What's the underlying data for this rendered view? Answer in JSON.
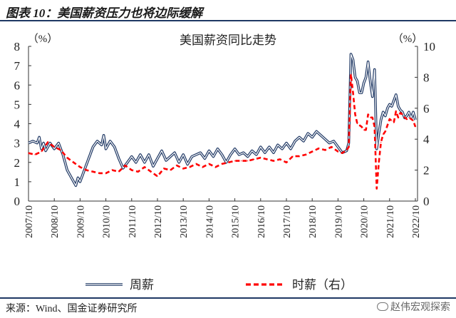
{
  "figure": {
    "title": "图表 10：美国薪资压力也将边际缓解",
    "source": "来源：Wind、国金证券研究所",
    "watermark": "赵伟宏观探索"
  },
  "chart_data": {
    "type": "line",
    "title": "美国薪资同比走势",
    "x_tick_labels": [
      "2007/10",
      "2008/10",
      "2009/10",
      "2010/10",
      "2011/10",
      "2012/10",
      "2013/10",
      "2014/10",
      "2015/10",
      "2016/10",
      "2017/10",
      "2018/10",
      "2019/10",
      "2020/10",
      "2021/10",
      "2022/10"
    ],
    "x_range": [
      "2007-10",
      "2022-11"
    ],
    "left_axis": {
      "unit_label": "（%）",
      "ylim": [
        0,
        8
      ],
      "ticks": [
        0,
        1,
        2,
        3,
        4,
        5,
        6,
        7,
        8
      ]
    },
    "right_axis": {
      "unit_label": "（%）",
      "ylim": [
        0,
        10
      ],
      "ticks": [
        0,
        2,
        4,
        6,
        8,
        10
      ]
    },
    "legend_position": "bottom",
    "grid": false,
    "series": [
      {
        "name": "周薪",
        "axis": "left",
        "color": "#1f3864",
        "style": "double-line",
        "points": [
          [
            "2007-10",
            3.0
          ],
          [
            "2007-12",
            3.1
          ],
          [
            "2008-02",
            3.0
          ],
          [
            "2008-03",
            3.3
          ],
          [
            "2008-04",
            2.7
          ],
          [
            "2008-05",
            3.0
          ],
          [
            "2008-06",
            2.6
          ],
          [
            "2008-08",
            3.0
          ],
          [
            "2008-10",
            2.7
          ],
          [
            "2008-12",
            3.0
          ],
          [
            "2009-02",
            2.4
          ],
          [
            "2009-04",
            1.6
          ],
          [
            "2009-06",
            1.2
          ],
          [
            "2009-08",
            0.8
          ],
          [
            "2009-09",
            1.2
          ],
          [
            "2009-10",
            1.0
          ],
          [
            "2009-12",
            1.6
          ],
          [
            "2010-02",
            2.2
          ],
          [
            "2010-04",
            2.8
          ],
          [
            "2010-06",
            3.1
          ],
          [
            "2010-08",
            2.9
          ],
          [
            "2010-09",
            3.4
          ],
          [
            "2010-10",
            2.7
          ],
          [
            "2010-12",
            3.1
          ],
          [
            "2011-02",
            2.8
          ],
          [
            "2011-04",
            2.2
          ],
          [
            "2011-06",
            1.7
          ],
          [
            "2011-08",
            2.0
          ],
          [
            "2011-10",
            2.3
          ],
          [
            "2011-12",
            2.0
          ],
          [
            "2012-02",
            2.4
          ],
          [
            "2012-04",
            2.0
          ],
          [
            "2012-06",
            2.4
          ],
          [
            "2012-08",
            1.8
          ],
          [
            "2012-10",
            2.2
          ],
          [
            "2012-12",
            2.6
          ],
          [
            "2013-02",
            2.1
          ],
          [
            "2013-04",
            2.3
          ],
          [
            "2013-06",
            2.5
          ],
          [
            "2013-08",
            2.0
          ],
          [
            "2013-10",
            2.4
          ],
          [
            "2013-12",
            1.9
          ],
          [
            "2014-02",
            2.3
          ],
          [
            "2014-04",
            2.4
          ],
          [
            "2014-06",
            2.5
          ],
          [
            "2014-08",
            2.2
          ],
          [
            "2014-10",
            2.6
          ],
          [
            "2014-12",
            2.3
          ],
          [
            "2015-02",
            2.7
          ],
          [
            "2015-04",
            2.4
          ],
          [
            "2015-06",
            2.0
          ],
          [
            "2015-08",
            2.4
          ],
          [
            "2015-10",
            2.7
          ],
          [
            "2015-12",
            2.4
          ],
          [
            "2016-02",
            2.5
          ],
          [
            "2016-04",
            2.3
          ],
          [
            "2016-06",
            2.6
          ],
          [
            "2016-08",
            2.4
          ],
          [
            "2016-10",
            2.8
          ],
          [
            "2016-12",
            2.5
          ],
          [
            "2017-02",
            2.8
          ],
          [
            "2017-04",
            2.5
          ],
          [
            "2017-06",
            2.9
          ],
          [
            "2017-08",
            2.7
          ],
          [
            "2017-10",
            3.0
          ],
          [
            "2017-12",
            2.7
          ],
          [
            "2018-02",
            3.1
          ],
          [
            "2018-04",
            3.3
          ],
          [
            "2018-06",
            3.1
          ],
          [
            "2018-08",
            3.5
          ],
          [
            "2018-10",
            3.3
          ],
          [
            "2018-12",
            3.6
          ],
          [
            "2019-02",
            3.4
          ],
          [
            "2019-04",
            3.2
          ],
          [
            "2019-06",
            3.0
          ],
          [
            "2019-08",
            3.1
          ],
          [
            "2019-10",
            2.8
          ],
          [
            "2019-12",
            2.5
          ],
          [
            "2020-02",
            2.6
          ],
          [
            "2020-03",
            3.0
          ],
          [
            "2020-04",
            7.6
          ],
          [
            "2020-05",
            7.3
          ],
          [
            "2020-06",
            6.4
          ],
          [
            "2020-07",
            6.2
          ],
          [
            "2020-08",
            5.6
          ],
          [
            "2020-09",
            5.6
          ],
          [
            "2020-10",
            6.1
          ],
          [
            "2020-11",
            6.4
          ],
          [
            "2020-12",
            7.2
          ],
          [
            "2021-01",
            6.2
          ],
          [
            "2021-02",
            5.4
          ],
          [
            "2021-03",
            6.8
          ],
          [
            "2021-04",
            2.7
          ],
          [
            "2021-05",
            3.5
          ],
          [
            "2021-06",
            4.2
          ],
          [
            "2021-07",
            4.6
          ],
          [
            "2021-08",
            4.4
          ],
          [
            "2021-09",
            4.8
          ],
          [
            "2021-10",
            5.0
          ],
          [
            "2021-11",
            4.9
          ],
          [
            "2021-12",
            5.2
          ],
          [
            "2022-01",
            5.5
          ],
          [
            "2022-02",
            4.9
          ],
          [
            "2022-03",
            4.7
          ],
          [
            "2022-04",
            4.6
          ],
          [
            "2022-05",
            4.3
          ],
          [
            "2022-06",
            4.4
          ],
          [
            "2022-07",
            4.6
          ],
          [
            "2022-08",
            4.3
          ],
          [
            "2022-09",
            4.6
          ],
          [
            "2022-10",
            4.2
          ]
        ]
      },
      {
        "name": "时薪（右）",
        "axis": "right",
        "color": "#ff0000",
        "style": "dashed",
        "points": [
          [
            "2007-10",
            3.1
          ],
          [
            "2008-01",
            3.0
          ],
          [
            "2008-04",
            3.2
          ],
          [
            "2008-07",
            3.8
          ],
          [
            "2008-10",
            3.5
          ],
          [
            "2009-01",
            3.3
          ],
          [
            "2009-04",
            2.8
          ],
          [
            "2009-07",
            2.5
          ],
          [
            "2009-10",
            2.2
          ],
          [
            "2010-01",
            2.0
          ],
          [
            "2010-04",
            1.9
          ],
          [
            "2010-07",
            1.8
          ],
          [
            "2010-10",
            1.8
          ],
          [
            "2011-01",
            2.0
          ],
          [
            "2011-04",
            1.9
          ],
          [
            "2011-07",
            2.3
          ],
          [
            "2011-10",
            2.0
          ],
          [
            "2012-01",
            1.9
          ],
          [
            "2012-04",
            2.2
          ],
          [
            "2012-07",
            1.9
          ],
          [
            "2012-10",
            1.6
          ],
          [
            "2013-01",
            2.1
          ],
          [
            "2013-04",
            2.0
          ],
          [
            "2013-07",
            2.3
          ],
          [
            "2013-10",
            2.1
          ],
          [
            "2014-01",
            2.2
          ],
          [
            "2014-04",
            2.4
          ],
          [
            "2014-07",
            2.2
          ],
          [
            "2014-10",
            2.4
          ],
          [
            "2015-01",
            2.2
          ],
          [
            "2015-04",
            2.4
          ],
          [
            "2015-07",
            2.5
          ],
          [
            "2015-10",
            2.6
          ],
          [
            "2016-01",
            2.6
          ],
          [
            "2016-04",
            2.6
          ],
          [
            "2016-07",
            2.7
          ],
          [
            "2016-10",
            2.8
          ],
          [
            "2017-01",
            2.7
          ],
          [
            "2017-04",
            2.6
          ],
          [
            "2017-07",
            2.7
          ],
          [
            "2017-10",
            2.5
          ],
          [
            "2018-01",
            2.9
          ],
          [
            "2018-04",
            2.9
          ],
          [
            "2018-07",
            3.0
          ],
          [
            "2018-10",
            3.2
          ],
          [
            "2019-01",
            3.4
          ],
          [
            "2019-04",
            3.3
          ],
          [
            "2019-07",
            3.5
          ],
          [
            "2019-10",
            3.2
          ],
          [
            "2019-12",
            3.1
          ],
          [
            "2020-02",
            3.3
          ],
          [
            "2020-03",
            3.5
          ],
          [
            "2020-04",
            8.2
          ],
          [
            "2020-05",
            7.0
          ],
          [
            "2020-06",
            5.6
          ],
          [
            "2020-07",
            5.0
          ],
          [
            "2020-08",
            4.9
          ],
          [
            "2020-09",
            4.8
          ],
          [
            "2020-10",
            4.6
          ],
          [
            "2020-11",
            4.6
          ],
          [
            "2020-12",
            5.6
          ],
          [
            "2021-01",
            5.4
          ],
          [
            "2021-02",
            5.4
          ],
          [
            "2021-03",
            4.8
          ],
          [
            "2021-04",
            0.8
          ],
          [
            "2021-05",
            2.5
          ],
          [
            "2021-06",
            3.8
          ],
          [
            "2021-07",
            4.3
          ],
          [
            "2021-08",
            4.5
          ],
          [
            "2021-09",
            4.9
          ],
          [
            "2021-10",
            5.3
          ],
          [
            "2021-11",
            5.2
          ],
          [
            "2021-12",
            5.1
          ],
          [
            "2022-01",
            5.8
          ],
          [
            "2022-02",
            5.4
          ],
          [
            "2022-03",
            5.7
          ],
          [
            "2022-04",
            5.6
          ],
          [
            "2022-05",
            5.4
          ],
          [
            "2022-06",
            5.3
          ],
          [
            "2022-07",
            5.4
          ],
          [
            "2022-08",
            5.3
          ],
          [
            "2022-09",
            5.2
          ],
          [
            "2022-10",
            4.8
          ]
        ]
      }
    ]
  }
}
